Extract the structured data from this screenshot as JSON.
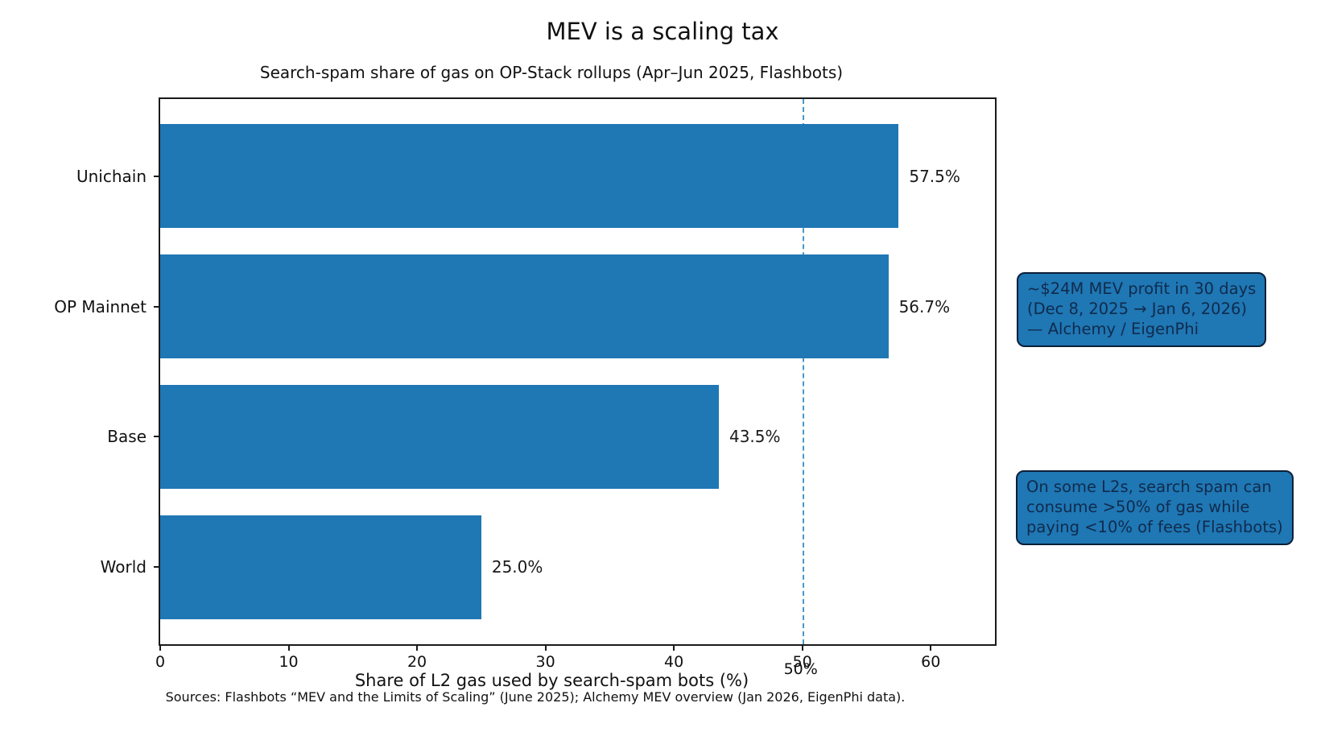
{
  "chart_data": {
    "type": "bar",
    "orientation": "horizontal",
    "title": "MEV is a scaling tax",
    "subtitle": "Search-spam share of gas on OP-Stack rollups (Apr–Jun 2025, Flashbots)",
    "categories": [
      "Unichain",
      "OP Mainnet",
      "Base",
      "World"
    ],
    "values": [
      57.5,
      56.7,
      43.5,
      25.0
    ],
    "value_labels": [
      "57.5%",
      "56.7%",
      "43.5%",
      "25.0%"
    ],
    "xlabel": "Share of L2 gas used by search-spam bots (%)",
    "xlim": [
      0,
      65
    ],
    "xticks": [
      0,
      10,
      20,
      30,
      40,
      50,
      60
    ],
    "grid": false,
    "legend": null,
    "reference_line": {
      "x": 50,
      "label": "50%",
      "style": "dashed"
    },
    "annotations": [
      {
        "id": "mev-profit",
        "text": "~$24M MEV profit in 30 days\n(Dec 8, 2025 → Jan 6, 2026)\n— Alchemy / EigenPhi"
      },
      {
        "id": "spam-share",
        "text": "On some L2s, search spam can\nconsume >50% of gas while\npaying <10% of fees (Flashbots)"
      }
    ],
    "footer": "Sources: Flashbots “MEV and the Limits of Scaling” (June 2025); Alchemy MEV overview (Jan 2026, EigenPhi data).",
    "colors": {
      "bar": "#1f77b4",
      "reference_line": "#4a96c8",
      "annotation_fill": "#1f77b4",
      "annotation_border": "#0b1f38",
      "annotation_text": "#102b4c",
      "axis": "#1a1a1a",
      "text": "#111111"
    }
  }
}
